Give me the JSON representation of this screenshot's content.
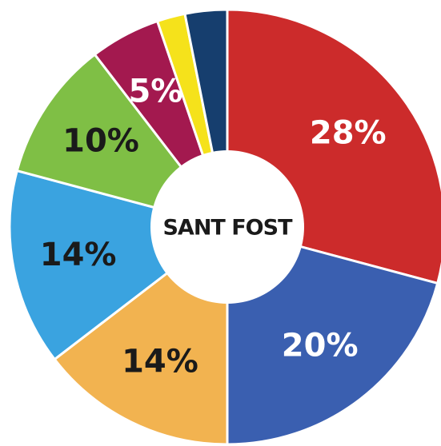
{
  "chart_data": {
    "type": "donut",
    "center_label": "SANT FOST",
    "values": [
      28,
      20,
      14,
      14,
      10,
      5,
      2,
      3
    ],
    "value_labels": [
      "28%",
      "20%",
      "14%",
      "14%",
      "10%",
      "5%",
      null,
      null
    ],
    "colors": [
      "#cc2b2b",
      "#3a5fb0",
      "#f2b350",
      "#3aa3e0",
      "#7fbf45",
      "#a3194f",
      "#f5e21b",
      "#163e6e"
    ],
    "label_colors": [
      "#ffffff",
      "#ffffff",
      "#1a1a1a",
      "#1a1a1a",
      "#1a1a1a",
      "#ffffff",
      null,
      null
    ]
  }
}
